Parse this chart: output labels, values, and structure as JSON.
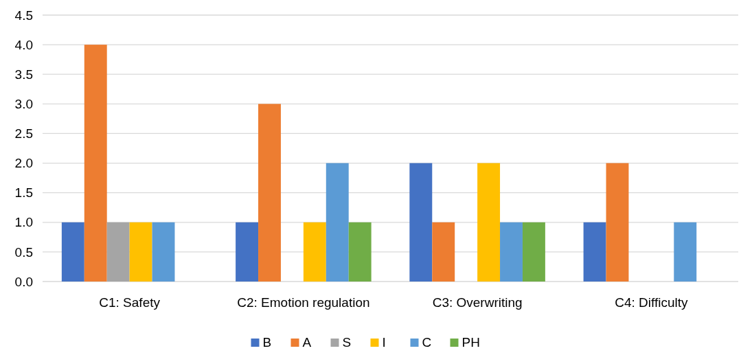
{
  "chart_data": {
    "type": "bar",
    "categories": [
      "C1: Safety",
      "C2: Emotion regulation",
      "C3: Overwriting",
      "C4: Difficulty"
    ],
    "series": [
      {
        "name": "B",
        "color": "#4472c4",
        "values": [
          1,
          1,
          2,
          1
        ]
      },
      {
        "name": "A",
        "color": "#ed7d31",
        "values": [
          4,
          3,
          1,
          2
        ]
      },
      {
        "name": "S",
        "color": "#a5a5a5",
        "values": [
          1,
          0,
          0,
          0
        ]
      },
      {
        "name": "I",
        "color": "#ffc000",
        "values": [
          1,
          1,
          2,
          0
        ]
      },
      {
        "name": "C",
        "color": "#5b9bd5",
        "values": [
          1,
          2,
          1,
          1
        ]
      },
      {
        "name": "PH",
        "color": "#70ad47",
        "values": [
          0,
          1,
          1,
          0
        ]
      }
    ],
    "ylim": [
      0,
      4.5
    ],
    "yticks": [
      {
        "value": 0,
        "label": "0.0"
      },
      {
        "value": 0.5,
        "label": "0.5"
      },
      {
        "value": 1,
        "label": "1.0"
      },
      {
        "value": 1.5,
        "label": "1.5"
      },
      {
        "value": 2,
        "label": "2.0"
      },
      {
        "value": 2.5,
        "label": "2.5"
      },
      {
        "value": 3,
        "label": "3.0"
      },
      {
        "value": 3.5,
        "label": "3.5"
      },
      {
        "value": 4,
        "label": "4.0"
      },
      {
        "value": 4.5,
        "label": "4.5"
      }
    ],
    "grid": "y",
    "legend": "bottom"
  }
}
